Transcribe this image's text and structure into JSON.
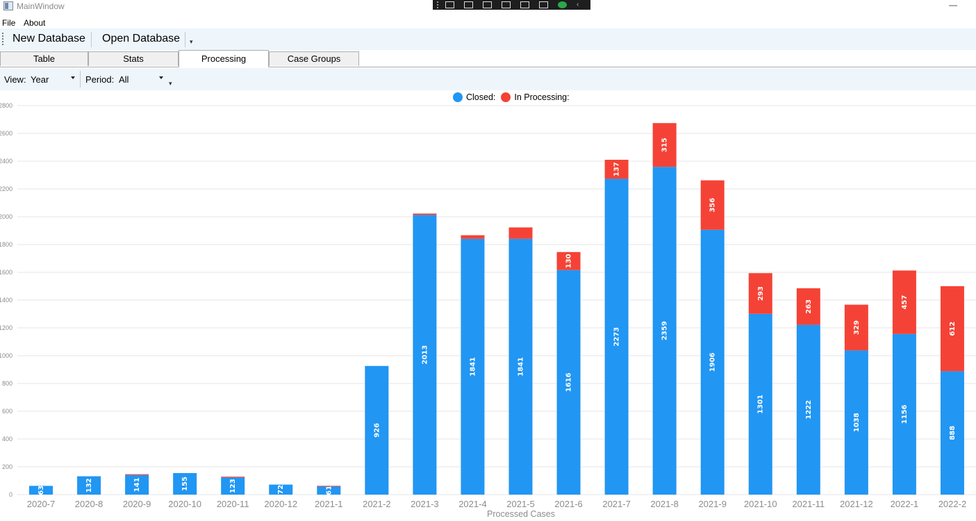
{
  "window": {
    "title": "MainWindow",
    "minimize": "—"
  },
  "menu": {
    "items": [
      "File",
      "About"
    ]
  },
  "toolbar": {
    "new_label": "New Database",
    "open_label": "Open Database"
  },
  "tabs": [
    {
      "label": "Table",
      "active": false
    },
    {
      "label": "Stats",
      "active": false
    },
    {
      "label": "Processing",
      "active": true
    },
    {
      "label": "Case Groups",
      "active": false
    }
  ],
  "filters": {
    "view_label": "View:",
    "view_value": "Year",
    "period_label": "Period:",
    "period_value": "All"
  },
  "colors": {
    "closed": "#2196F3",
    "processing": "#F44336"
  },
  "chart_data": {
    "type": "bar",
    "stacked": true,
    "xlabel": "Processed Cases",
    "ylabel": "",
    "ylim": [
      0,
      2800
    ],
    "yticks": [
      0,
      200,
      400,
      600,
      800,
      1000,
      1200,
      1400,
      1600,
      1800,
      2000,
      2200,
      2400,
      2600,
      2800
    ],
    "grid": true,
    "legend_position": "top-center",
    "categories": [
      "2020-7",
      "2020-8",
      "2020-9",
      "2020-10",
      "2020-11",
      "2020-12",
      "2021-1",
      "2021-2",
      "2021-3",
      "2021-4",
      "2021-5",
      "2021-6",
      "2021-7",
      "2021-8",
      "2021-9",
      "2021-10",
      "2021-11",
      "2021-12",
      "2022-1",
      "2022-2"
    ],
    "series": [
      {
        "name": "Closed:",
        "color": "#2196F3",
        "values": [
          63,
          132,
          141,
          155,
          123,
          72,
          61,
          926,
          2013,
          1841,
          1841,
          1616,
          2273,
          2359,
          1906,
          1301,
          1222,
          1038,
          1156,
          888
        ]
      },
      {
        "name": "In Processing:",
        "color": "#F44336",
        "values": [
          0,
          0,
          6,
          0,
          6,
          0,
          2,
          0,
          10,
          26,
          82,
          130,
          137,
          315,
          356,
          293,
          263,
          329,
          457,
          612
        ]
      }
    ],
    "label_threshold": 100
  }
}
